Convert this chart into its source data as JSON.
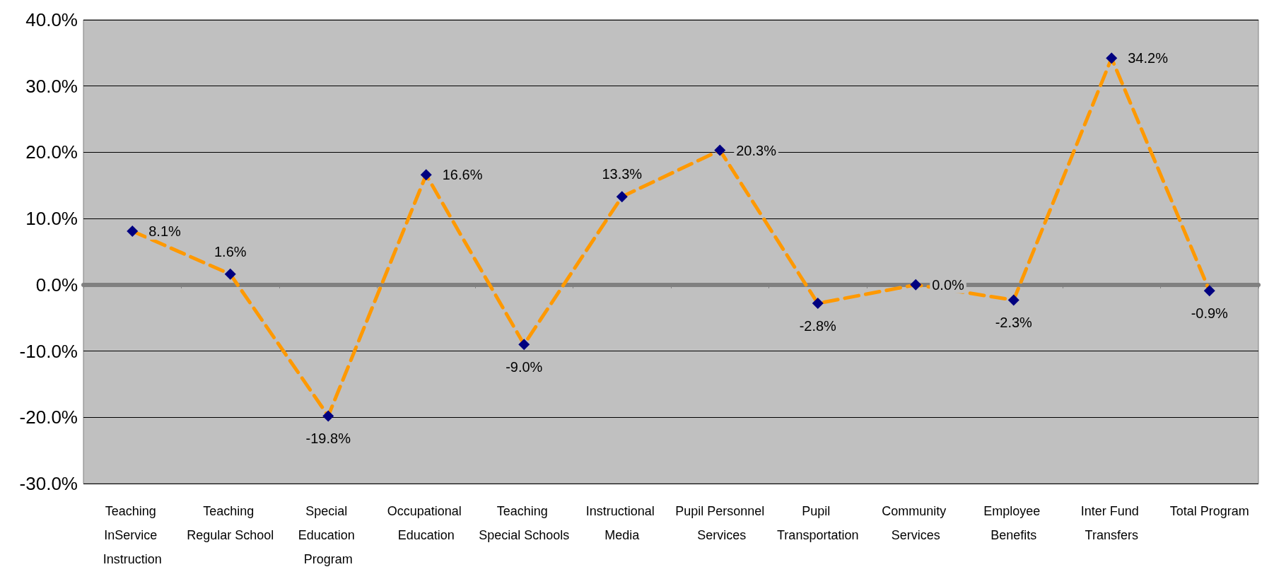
{
  "chart_data": {
    "type": "line",
    "categories": [
      "Teaching InService Instruction",
      "Teaching Regular School",
      "Special Education Program",
      "Occupational Education",
      "Teaching Special Schools",
      "Instructional Media",
      "Pupil Personnel Services",
      "Pupil Transportation",
      "Community Services",
      "Employee Benefits",
      "Inter Fund Transfers",
      "Total Program"
    ],
    "series": [
      {
        "color": "#ff9900",
        "values": [
          8.1,
          1.6,
          -19.8,
          16.6,
          -9.0,
          13.3,
          20.3,
          -2.8,
          0.0,
          -2.3,
          34.2,
          -0.9
        ],
        "value_labels": [
          "8.1%",
          "1.6%",
          "-19.8%",
          "16.6%",
          "-9.0%",
          "13.3%",
          "20.3%",
          "-2.8%",
          "0.0%",
          "-2.3%",
          "34.2%",
          "-0.9%"
        ]
      }
    ],
    "ylim": [
      -30,
      40
    ],
    "yticks": [
      {
        "value": -30,
        "label": "-30.0%"
      },
      {
        "value": -20,
        "label": "-20.0%"
      },
      {
        "value": -10,
        "label": "-10.0%"
      },
      {
        "value": 0,
        "label": "0.0%"
      },
      {
        "value": 10,
        "label": "10.0%"
      },
      {
        "value": 20,
        "label": "20.0%"
      },
      {
        "value": 30,
        "label": "30.0%"
      },
      {
        "value": 40,
        "label": "40.0%"
      }
    ],
    "grid": "y",
    "marker": "diamond",
    "line_style": "dashed"
  }
}
